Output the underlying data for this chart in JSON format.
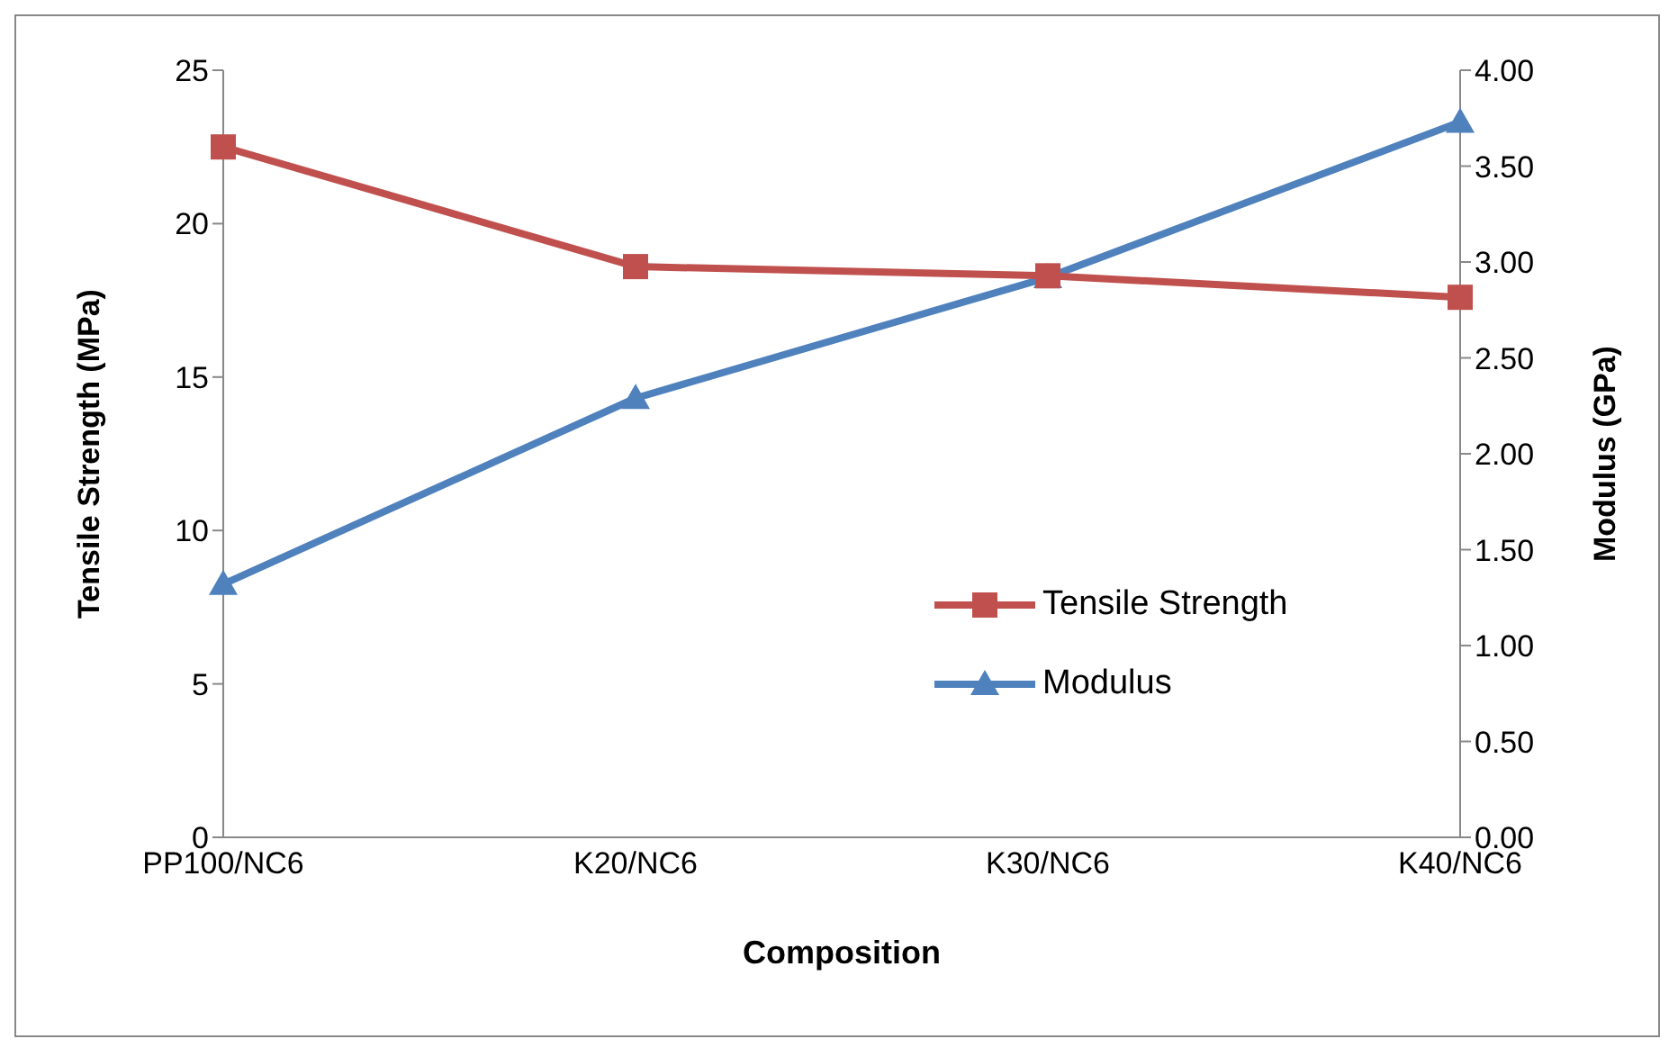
{
  "chart_data": {
    "type": "line",
    "xlabel": "Composition",
    "ylabel": "Tensile Strength (MPa)",
    "y2label": "Modulus (GPa)",
    "categories": [
      "PP100/NC6",
      "K20/NC6",
      "K30/NC6",
      "K40/NC6"
    ],
    "series": [
      {
        "name": "Tensile Strength",
        "color": "#c0504d",
        "marker": "square",
        "values": [
          22.5,
          18.6,
          18.3,
          17.6
        ]
      },
      {
        "name": "Modulus",
        "color": "#4f81bd",
        "marker": "triangle",
        "axis": "y2",
        "values": [
          1.32,
          2.29,
          2.92,
          3.73
        ]
      }
    ],
    "ylim": [
      0,
      25
    ],
    "yticks": [
      0,
      5,
      10,
      15,
      20,
      25
    ],
    "y2lim": [
      0,
      4
    ],
    "y2ticks": [
      {
        "value": 0,
        "label": "0.00"
      },
      {
        "value": 0.5,
        "label": "0.50"
      },
      {
        "value": 1,
        "label": "1.00"
      },
      {
        "value": 1.5,
        "label": "1.50"
      },
      {
        "value": 2,
        "label": "2.00"
      },
      {
        "value": 2.5,
        "label": "2.50"
      },
      {
        "value": 3,
        "label": "3.00"
      },
      {
        "value": 3.5,
        "label": "3.50"
      },
      {
        "value": 4,
        "label": "4.00"
      }
    ],
    "grid": false,
    "legend": "right",
    "line_style": "solid"
  }
}
